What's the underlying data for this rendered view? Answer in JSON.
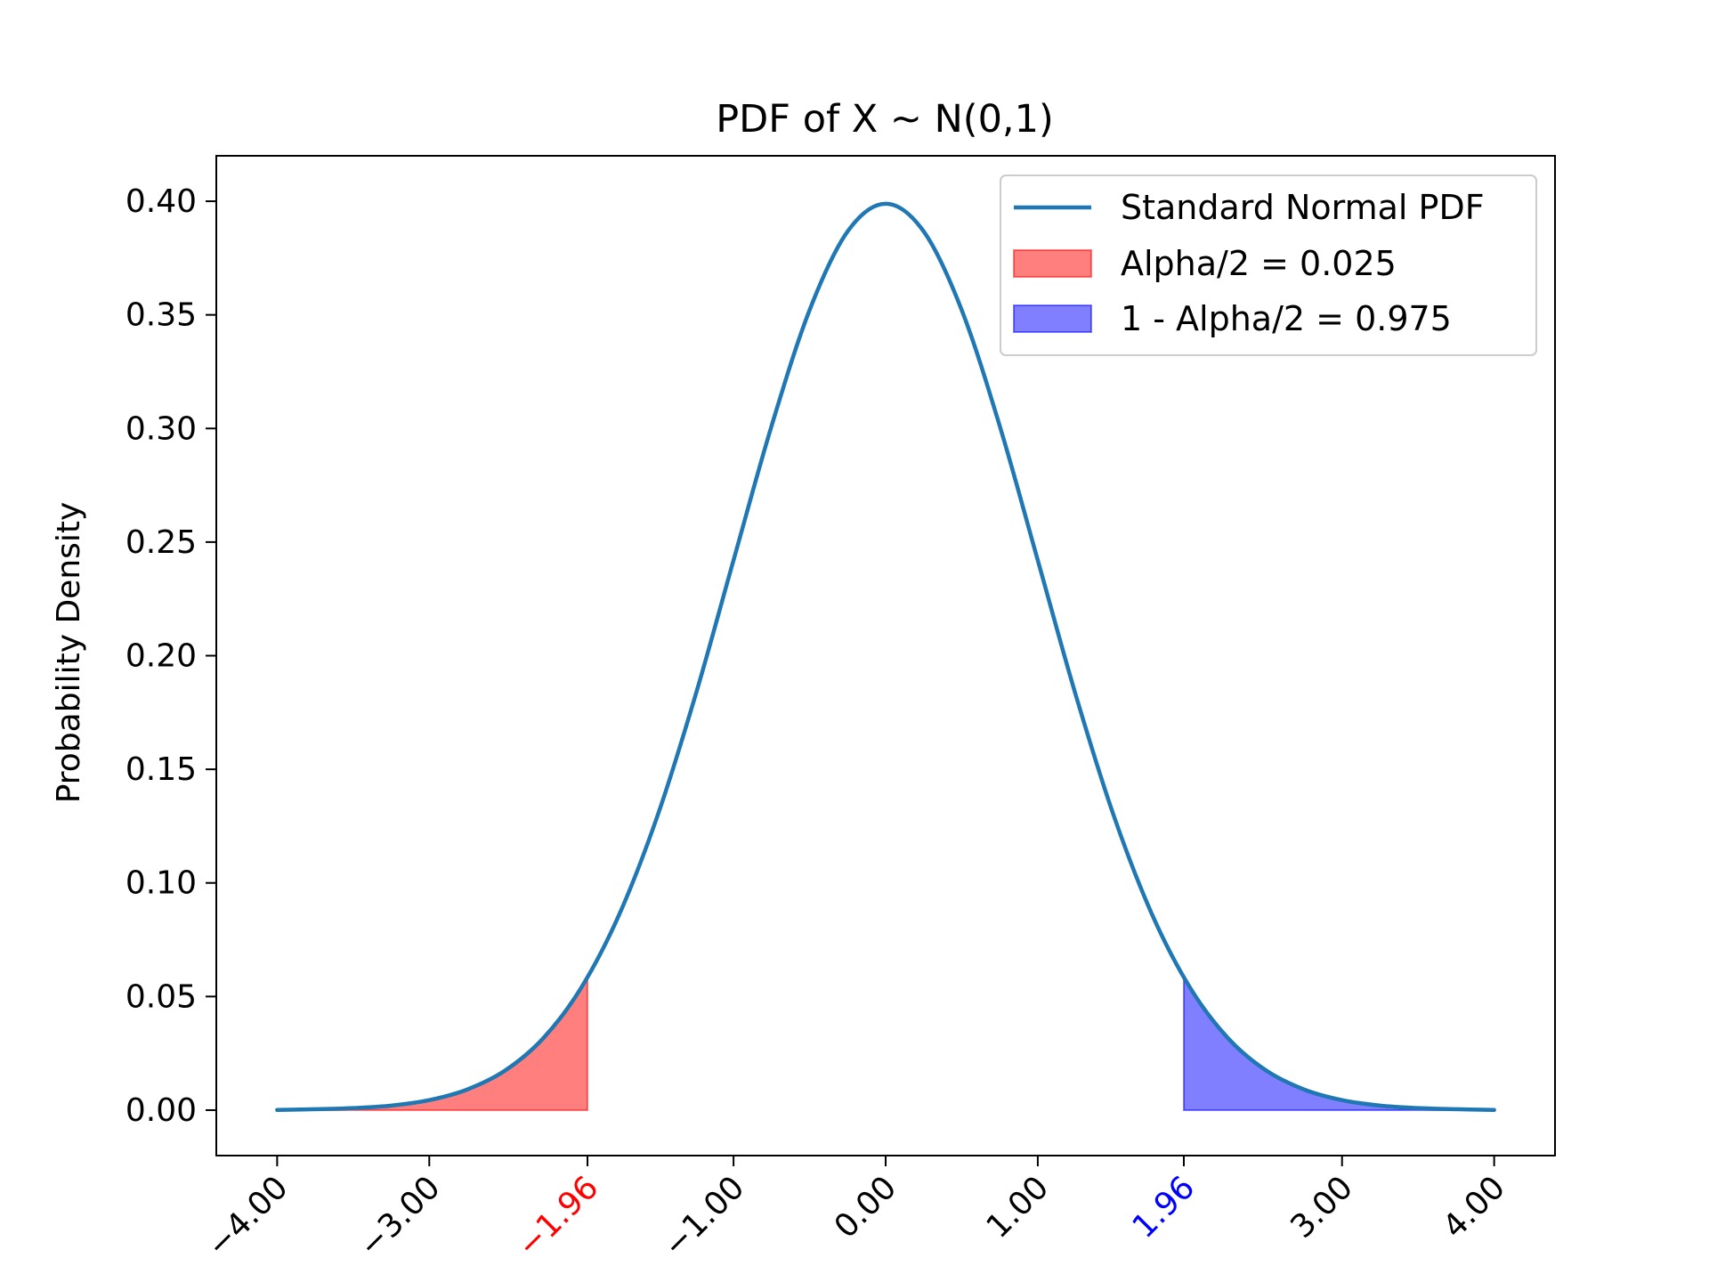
{
  "chart_data": {
    "type": "line",
    "title": "PDF of X ~ N(0,1)",
    "xlabel": "",
    "ylabel": "Probability Density",
    "xlim": [
      -4.4,
      4.4
    ],
    "ylim": [
      -0.02,
      0.42
    ],
    "x_ticks": [
      {
        "value": -4,
        "label": "−4.00",
        "color": "#000000"
      },
      {
        "value": -3,
        "label": "−3.00",
        "color": "#000000"
      },
      {
        "value": -1.96,
        "label": "−1.96",
        "color": "#ff0000"
      },
      {
        "value": -1,
        "label": "−1.00",
        "color": "#000000"
      },
      {
        "value": 0,
        "label": "0.00",
        "color": "#000000"
      },
      {
        "value": 1,
        "label": "1.00",
        "color": "#000000"
      },
      {
        "value": 1.96,
        "label": "1.96",
        "color": "#0000ff"
      },
      {
        "value": 3,
        "label": "3.00",
        "color": "#000000"
      },
      {
        "value": 4,
        "label": "4.00",
        "color": "#000000"
      }
    ],
    "y_ticks": [
      {
        "value": 0.0,
        "label": "0.00"
      },
      {
        "value": 0.05,
        "label": "0.05"
      },
      {
        "value": 0.1,
        "label": "0.10"
      },
      {
        "value": 0.15,
        "label": "0.15"
      },
      {
        "value": 0.2,
        "label": "0.20"
      },
      {
        "value": 0.25,
        "label": "0.25"
      },
      {
        "value": 0.3,
        "label": "0.30"
      },
      {
        "value": 0.35,
        "label": "0.35"
      },
      {
        "value": 0.4,
        "label": "0.40"
      }
    ],
    "series": [
      {
        "name": "Standard Normal PDF",
        "type": "line",
        "color": "#1f77b4",
        "x": [
          -4.0,
          -3.75,
          -3.5,
          -3.25,
          -3.0,
          -2.75,
          -2.5,
          -2.25,
          -2.0,
          -1.75,
          -1.5,
          -1.25,
          -1.0,
          -0.75,
          -0.5,
          -0.25,
          0.0,
          0.25,
          0.5,
          0.75,
          1.0,
          1.25,
          1.5,
          1.75,
          2.0,
          2.25,
          2.5,
          2.75,
          3.0,
          3.25,
          3.5,
          3.75,
          4.0
        ],
        "y": [
          0.0001,
          0.0004,
          0.0009,
          0.002,
          0.0044,
          0.0091,
          0.0175,
          0.0317,
          0.054,
          0.0863,
          0.1295,
          0.1826,
          0.242,
          0.3011,
          0.3521,
          0.3867,
          0.3989,
          0.3867,
          0.3521,
          0.3011,
          0.242,
          0.1826,
          0.1295,
          0.0863,
          0.054,
          0.0317,
          0.0175,
          0.0091,
          0.0044,
          0.002,
          0.0009,
          0.0004,
          0.0001
        ]
      },
      {
        "name": "Alpha/2 = 0.025",
        "type": "area",
        "color": "#ff0000",
        "opacity": 0.5,
        "x": [
          -4.0,
          -3.75,
          -3.5,
          -3.25,
          -3.0,
          -2.75,
          -2.5,
          -2.25,
          -2.0,
          -1.96
        ],
        "y": [
          0.0001,
          0.0004,
          0.0009,
          0.002,
          0.0044,
          0.0091,
          0.0175,
          0.0317,
          0.054,
          0.0584
        ]
      },
      {
        "name": "1 - Alpha/2 = 0.975",
        "type": "area",
        "color": "#0000ff",
        "opacity": 0.5,
        "x": [
          1.96,
          2.0,
          2.25,
          2.5,
          2.75,
          3.0,
          3.25,
          3.5,
          3.75,
          4.0
        ],
        "y": [
          0.0584,
          0.054,
          0.0317,
          0.0175,
          0.0091,
          0.0044,
          0.002,
          0.0009,
          0.0004,
          0.0001
        ]
      }
    ],
    "legend": {
      "placement": "top-right",
      "entries": [
        {
          "label": "Standard Normal PDF",
          "kind": "line",
          "color": "#1f77b4"
        },
        {
          "label": "Alpha/2 = 0.025",
          "kind": "patch",
          "color": "#ff0000"
        },
        {
          "label": "1 - Alpha/2 = 0.975",
          "kind": "patch",
          "color": "#0000ff"
        }
      ]
    },
    "grid": false
  }
}
